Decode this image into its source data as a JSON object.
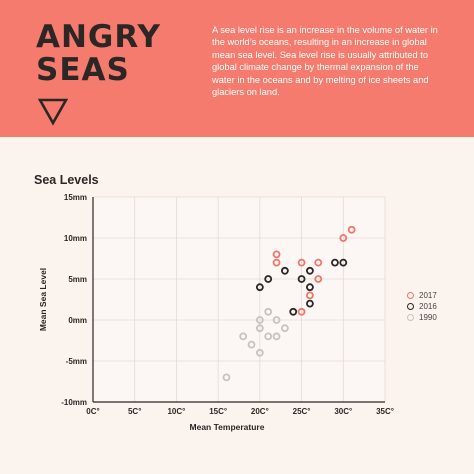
{
  "header": {
    "title_lines": [
      "ANGRY",
      "SEAS"
    ],
    "description": "A sea level rise is an increase in the volume of water in the world’s oceans, resulting in an increase in global mean sea level. Sea level rise is usually attributed to global climate change by thermal expansion of the water in the oceans and by melting of ice sheets and glaciers on land.",
    "icon": "down-triangle-icon",
    "colors": {
      "banner": "#f47b6e",
      "text_dark": "#2c2625",
      "background": "#fbf3ee"
    }
  },
  "chart_data": {
    "type": "scatter",
    "title": "Sea Levels",
    "xlabel": "Mean Temperature",
    "ylabel": "Mean Sea Level",
    "xlim": [
      0,
      35
    ],
    "ylim": [
      -10,
      15
    ],
    "x_ticks": [
      "0C°",
      "5C°",
      "10C°",
      "15C°",
      "20C°",
      "25C°",
      "30C°",
      "35C°"
    ],
    "y_ticks": [
      "15mm",
      "10mm",
      "5mm",
      "0mm",
      "-5mm",
      "-10mm"
    ],
    "x_tick_values": [
      0,
      5,
      10,
      15,
      20,
      25,
      30,
      35
    ],
    "y_tick_values": [
      15,
      10,
      5,
      0,
      -5,
      -10
    ],
    "grid": true,
    "legend_position": "right",
    "series": [
      {
        "name": "2017",
        "color": "#f0776a",
        "points": [
          [
            22,
            8
          ],
          [
            22,
            7
          ],
          [
            25,
            7
          ],
          [
            27,
            7
          ],
          [
            27,
            5
          ],
          [
            26,
            3
          ],
          [
            25,
            1
          ],
          [
            30,
            10
          ],
          [
            31,
            11
          ]
        ]
      },
      {
        "name": "2016",
        "color": "#2c2625",
        "points": [
          [
            20,
            4
          ],
          [
            21,
            5
          ],
          [
            23,
            6
          ],
          [
            25,
            5
          ],
          [
            26,
            6
          ],
          [
            26,
            4
          ],
          [
            26,
            2
          ],
          [
            24,
            1
          ],
          [
            29,
            7
          ],
          [
            30,
            7
          ]
        ]
      },
      {
        "name": "1990",
        "color": "#c9c2bf",
        "points": [
          [
            21,
            1
          ],
          [
            20,
            0
          ],
          [
            22,
            0
          ],
          [
            23,
            -1
          ],
          [
            20,
            -1
          ],
          [
            21,
            -2
          ],
          [
            22,
            -2
          ],
          [
            18,
            -2
          ],
          [
            19,
            -3
          ],
          [
            20,
            -4
          ],
          [
            16,
            -7
          ]
        ]
      }
    ]
  }
}
